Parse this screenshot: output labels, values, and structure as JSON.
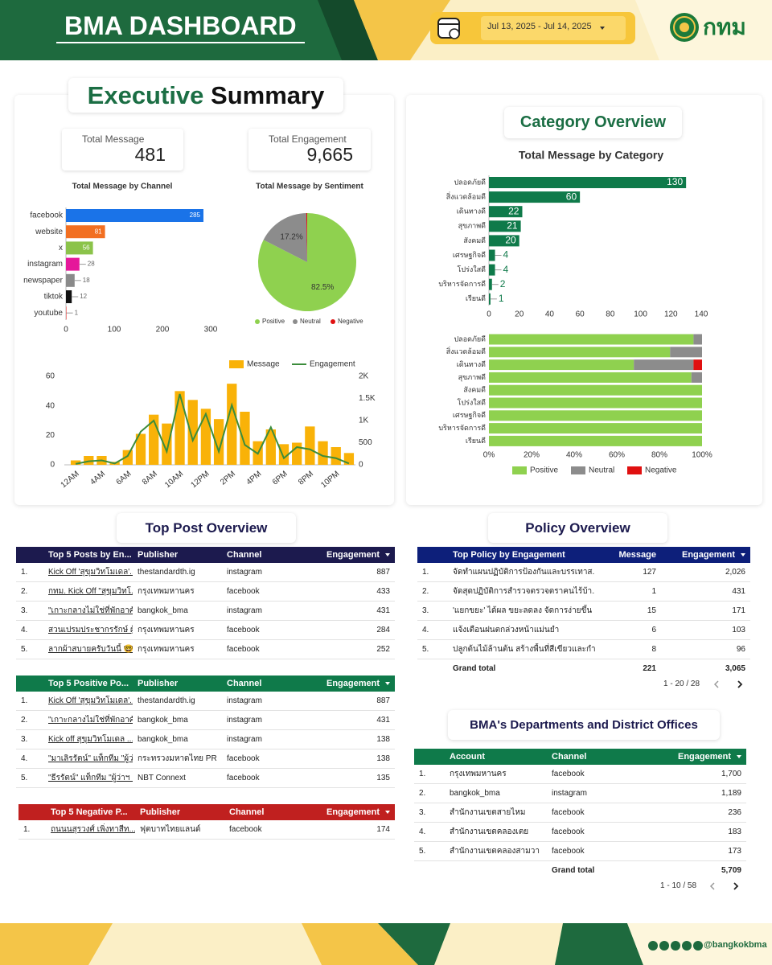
{
  "header": {
    "title": "BMA DASHBOARD",
    "date_range": "Jul 13, 2025 - Jul 14, 2025",
    "logo_text": "กทม"
  },
  "executive_summary": {
    "title_highlight": "Executive",
    "title_rest": "Summary",
    "kpis": [
      {
        "label": "Total Message",
        "value": 481
      },
      {
        "label": "Total Engagement",
        "value": "9,665"
      }
    ]
  },
  "category_overview": {
    "title": "Category Overview"
  },
  "chart_data": [
    {
      "type": "bar",
      "orientation": "horizontal",
      "title": "Total Message by Channel",
      "categories": [
        "facebook",
        "website",
        "x",
        "instagram",
        "newspaper",
        "tiktok",
        "youtube"
      ],
      "values": [
        285,
        81,
        56,
        28,
        18,
        12,
        1
      ],
      "colors": [
        "#1a73e8",
        "#f26f21",
        "#8bc34a",
        "#e5189a",
        "#8a8a8a",
        "#111111",
        "#e53935"
      ],
      "xlim": [
        0,
        300
      ],
      "xticks": [
        0,
        100,
        200,
        300
      ]
    },
    {
      "type": "pie",
      "title": "Total Message by Sentiment",
      "categories": [
        "Positive",
        "Neutral",
        "Negative"
      ],
      "values": [
        82.5,
        17.2,
        0.3
      ],
      "value_labels": [
        "82.5%",
        "17.2%",
        null
      ],
      "colors": [
        "#8fd14f",
        "#8c8c8c",
        "#e01010"
      ],
      "legend": "bottom"
    },
    {
      "type": "combo",
      "categories": [
        "12AM",
        null,
        "4AM",
        null,
        "6AM",
        null,
        "8AM",
        null,
        "10AM",
        null,
        "12PM",
        null,
        "2PM",
        null,
        "4PM",
        null,
        "6PM",
        null,
        "8PM",
        null,
        "10PM",
        null
      ],
      "series": [
        {
          "name": "Message",
          "type": "bar",
          "color": "#f9b208",
          "values": [
            3,
            6,
            6,
            2,
            10,
            21,
            34,
            28,
            50,
            44,
            38,
            31,
            55,
            36,
            16,
            24,
            14,
            15,
            26,
            16,
            12,
            8
          ]
        },
        {
          "name": "Engagement",
          "type": "line",
          "axis": "y2",
          "color": "#3b8c3b",
          "values": [
            20,
            80,
            100,
            30,
            200,
            750,
            1000,
            300,
            1600,
            550,
            1150,
            300,
            1350,
            450,
            250,
            850,
            150,
            400,
            350,
            200,
            150,
            30
          ]
        }
      ],
      "ylim": [
        0,
        60
      ],
      "yticks": [
        0,
        20,
        40,
        60
      ],
      "y2lim": [
        0,
        2000
      ],
      "y2ticks": [
        0,
        500,
        {
          "value": 1000,
          "label": "1K"
        },
        {
          "value": 1500,
          "label": "1.5K"
        },
        {
          "value": 2000,
          "label": "2K"
        }
      ],
      "legend": "top"
    },
    {
      "type": "bar",
      "orientation": "horizontal",
      "title": "Total Message by Category",
      "categories": [
        "ปลอดภัยดี",
        "สิ่งแวดล้อมดี",
        "เดินทางดี",
        "สุขภาพดี",
        "สังคมดี",
        "เศรษฐกิจดี",
        "โปร่งใสดี",
        "บริหารจัดการดี",
        "เรียนดี"
      ],
      "values": [
        130,
        60,
        22,
        21,
        20,
        4,
        4,
        2,
        1
      ],
      "color": "#0f7a4a",
      "xlim": [
        0,
        140
      ],
      "xticks": [
        0,
        20,
        40,
        60,
        80,
        100,
        120,
        140
      ]
    },
    {
      "type": "stacked_bar",
      "orientation": "horizontal",
      "categories": [
        "ปลอดภัยดี",
        "สิ่งแวดล้อมดี",
        "เดินทางดี",
        "สุขภาพดี",
        "สังคมดี",
        "โปร่งใสดี",
        "เศรษฐกิจดี",
        "บริหารจัดการดี",
        "เรียนดี"
      ],
      "series": [
        {
          "name": "Positive",
          "color": "#8fd14f",
          "values": [
            96,
            85,
            68,
            95,
            100,
            100,
            100,
            100,
            100
          ]
        },
        {
          "name": "Neutral",
          "color": "#8c8c8c",
          "values": [
            4,
            15,
            28,
            5,
            0,
            0,
            0,
            0,
            0
          ]
        },
        {
          "name": "Negative",
          "color": "#e01010",
          "values": [
            0,
            0,
            4,
            0,
            0,
            0,
            0,
            0,
            0
          ]
        }
      ],
      "xlim": [
        0,
        100
      ],
      "xticks": [
        {
          "value": 0,
          "label": "0%"
        },
        {
          "value": 20,
          "label": "20%"
        },
        {
          "value": 40,
          "label": "40%"
        },
        {
          "value": 60,
          "label": "60%"
        },
        {
          "value": 80,
          "label": "80%"
        },
        {
          "value": 100,
          "label": "100%"
        }
      ],
      "legend": "bottom"
    }
  ],
  "top_post_overview": {
    "title": "Top Post Overview",
    "tables": [
      {
        "color": "#1c1a4e",
        "columns": [
          "Top 5 Posts by En...",
          "Publisher",
          "Channel",
          "Engagement"
        ],
        "rows": [
          [
            "1.",
            "Kick Off 'สุขุมวิทโมเดล'...",
            "thestandardth.ig",
            "instagram",
            887
          ],
          [
            "2.",
            "กทม. Kick Off \"สุขุมวิทโ...",
            "กรุงเทพมหานคร",
            "facebook",
            433
          ],
          [
            "3.",
            "\"เกาะกลางไม่ใช่ที่พักอาศัย...",
            "bangkok_bma",
            "instagram",
            431
          ],
          [
            "4.",
            "สวนเปรมประชากรรักษ์ ผู้...",
            "กรุงเทพมหานคร",
            "facebook",
            284
          ],
          [
            "5.",
            "ลากผ้าสบายครับวันนี้ 🤓...",
            "กรุงเทพมหานคร",
            "facebook",
            252
          ]
        ]
      },
      {
        "color": "#0f7a4a",
        "columns": [
          "Top 5 Positive Po...",
          "Publisher",
          "Channel",
          "Engagement"
        ],
        "rows": [
          [
            "1.",
            "Kick Off 'สุขุมวิทโมเดล'...",
            "thestandardth.ig",
            "instagram",
            887
          ],
          [
            "2.",
            "\"เกาะกลางไม่ใช่ที่พักอาศัย...",
            "bangkok_bma",
            "instagram",
            431
          ],
          [
            "3.",
            "Kick off สุขุมวิทโมเดล ...",
            "bangkok_bma",
            "instagram",
            138
          ],
          [
            "4.",
            "\"มาเลิรรัตน์\" แท็กทีม \"ผู้ว่...",
            "กระทรวงมหาดไทย PR",
            "facebook",
            138
          ],
          [
            "5.",
            "\"ธีรรัตน์\" แท็กทีม \"ผู้ว่าฯ ...",
            "NBT Connext",
            "facebook",
            135
          ]
        ]
      },
      {
        "color": "#c0201f",
        "columns": [
          "Top 5 Negative P...",
          "Publisher",
          "Channel",
          "Engagement"
        ],
        "rows": [
          [
            "1.",
            "ถนนนสุรวงศ์ เพิ่งทาสีท...",
            "ฟุตบาทไทยแลนด์",
            "facebook",
            174
          ]
        ]
      }
    ]
  },
  "policy_overview": {
    "title": "Policy Overview",
    "table": {
      "color": "#0d1f7a",
      "columns": [
        "Top Policy by Engagement",
        "Message",
        "Engagement"
      ],
      "rows": [
        [
          "1.",
          "จัดทำแผนปฏิบัติการป้องกันและบรรเทาส...",
          127,
          "2,026"
        ],
        [
          "2.",
          "จัดสุดปฏิบัติการสำรวจตรวจตราคนไร้บ้า...",
          1,
          431
        ],
        [
          "3.",
          "'แยกขยะ' ได้ผล ขยะลดลง จัดการง่ายขึ้น",
          15,
          171
        ],
        [
          "4.",
          "แจ้งเตือนฝนตกล่วงหน้าแม่นยำ",
          6,
          103
        ],
        [
          "5.",
          "ปลูกต้นไม้ล้านต้น สร้างพื้นที่สีเขียวและกำ...",
          8,
          96
        ]
      ],
      "total": [
        "Grand total",
        221,
        "3,065"
      ]
    },
    "pagination": "1 - 20 / 28"
  },
  "departments": {
    "title": "BMA's Departments and District Offices",
    "table": {
      "color": "#0f7a4a",
      "columns": [
        "Account",
        "Channel",
        "Engagement"
      ],
      "rows": [
        [
          "1.",
          "กรุงเทพมหานคร",
          "facebook",
          "1,700"
        ],
        [
          "2.",
          "bangkok_bma",
          "instagram",
          "1,189"
        ],
        [
          "3.",
          "สำนักงานเขตสายไหม",
          "facebook",
          236
        ],
        [
          "4.",
          "สำนักงานเขตคลองเตย",
          "facebook",
          183
        ],
        [
          "5.",
          "สำนักงานเขตคลองสามวา",
          "facebook",
          173
        ]
      ],
      "total": [
        "Grand total",
        "5,709"
      ]
    },
    "pagination": "1 - 10 / 58"
  },
  "footer": {
    "handle": "@bangkokbma"
  }
}
